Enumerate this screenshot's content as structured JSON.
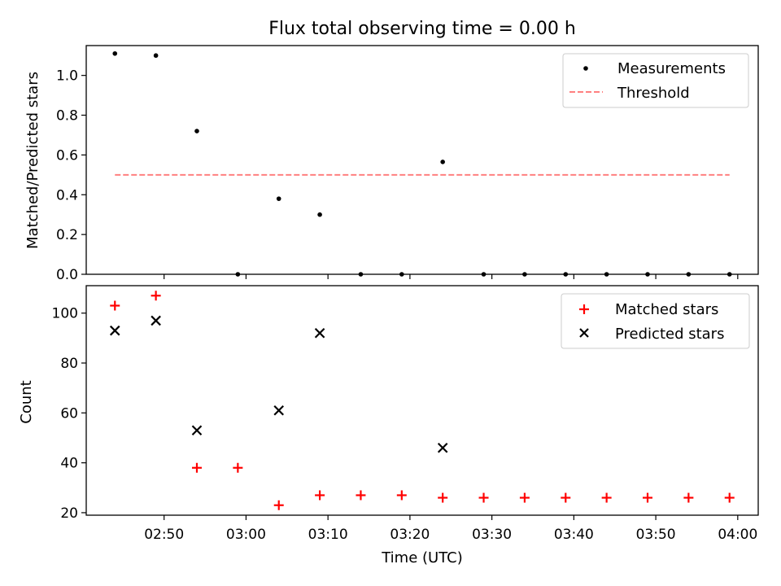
{
  "figure": {
    "title": "Flux total observing time = 0.00 h",
    "xlabel": "Time (UTC)"
  },
  "chart_data": [
    {
      "type": "scatter",
      "ylabel": "Matched/Predicted stars",
      "xlim": [
        "02:40:30",
        "04:02:30"
      ],
      "ylim": [
        0,
        1.15
      ],
      "yticks": [
        "0.0",
        "0.2",
        "0.4",
        "0.6",
        "0.8",
        "1.0"
      ],
      "legend_position": "upper right",
      "series": [
        {
          "name": "Measurements",
          "kind": "points",
          "color": "#000000",
          "x": [
            "02:44",
            "02:49",
            "02:54",
            "02:59",
            "03:04",
            "03:09",
            "03:14",
            "03:19",
            "03:24",
            "03:29",
            "03:34",
            "03:39",
            "03:44",
            "03:49",
            "03:54",
            "03:59"
          ],
          "y": [
            1.11,
            1.1,
            0.72,
            0.0,
            0.38,
            0.3,
            0.0,
            0.0,
            0.565,
            0.0,
            0.0,
            0.0,
            0.0,
            0.0,
            0.0,
            0.0
          ]
        },
        {
          "name": "Threshold",
          "kind": "dashed-line",
          "color": "#ff8080",
          "x": [
            "02:44",
            "03:59"
          ],
          "y": [
            0.5,
            0.5
          ]
        }
      ]
    },
    {
      "type": "scatter",
      "ylabel": "Count",
      "xlim": [
        "02:40:30",
        "04:02:30"
      ],
      "ylim": [
        19,
        111
      ],
      "yticks": [
        "20",
        "40",
        "60",
        "80",
        "100"
      ],
      "xticks": [
        "02:50",
        "03:00",
        "03:10",
        "03:20",
        "03:30",
        "03:40",
        "03:50",
        "04:00"
      ],
      "legend_position": "upper right",
      "series": [
        {
          "name": "Matched stars",
          "marker": "plus",
          "color": "#ff0000",
          "x": [
            "02:44",
            "02:49",
            "02:54",
            "02:59",
            "03:04",
            "03:09",
            "03:14",
            "03:19",
            "03:24",
            "03:29",
            "03:34",
            "03:39",
            "03:44",
            "03:49",
            "03:54",
            "03:59"
          ],
          "y": [
            103,
            107,
            38,
            38,
            23,
            27,
            27,
            27,
            26,
            26,
            26,
            26,
            26,
            26,
            26,
            26
          ]
        },
        {
          "name": "Predicted stars",
          "marker": "x",
          "color": "#000000",
          "x": [
            "02:44",
            "02:49",
            "02:54",
            "03:04",
            "03:09",
            "03:24"
          ],
          "y": [
            93,
            97,
            53,
            61,
            92,
            46
          ]
        }
      ]
    }
  ]
}
